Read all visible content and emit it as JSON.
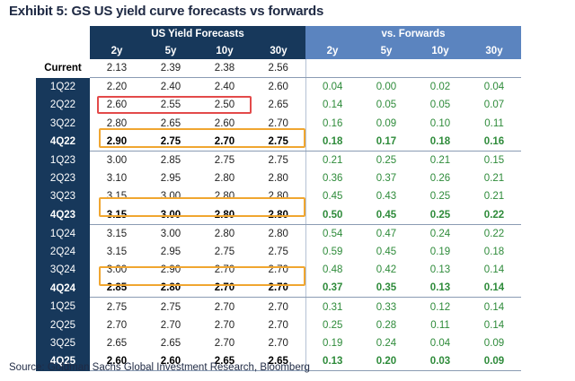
{
  "title": "Exhibit 5: GS US yield curve forecasts vs forwards",
  "group_headers": {
    "forecasts": "US Yield Forecasts",
    "forwards": "vs. Forwards"
  },
  "columns": [
    "2y",
    "5y",
    "10y",
    "30y"
  ],
  "rows": [
    {
      "label": "Current",
      "f": [
        "2.13",
        "2.39",
        "2.38",
        "2.56"
      ],
      "w": [
        "",
        "",
        "",
        ""
      ],
      "bold": false,
      "current": true
    },
    {
      "label": "1Q22",
      "f": [
        "2.20",
        "2.40",
        "2.40",
        "2.60"
      ],
      "w": [
        "0.04",
        "0.00",
        "0.02",
        "0.04"
      ],
      "bold": false
    },
    {
      "label": "2Q22",
      "f": [
        "2.60",
        "2.55",
        "2.50",
        "2.65"
      ],
      "w": [
        "0.14",
        "0.05",
        "0.05",
        "0.07"
      ],
      "bold": false
    },
    {
      "label": "3Q22",
      "f": [
        "2.80",
        "2.65",
        "2.60",
        "2.70"
      ],
      "w": [
        "0.16",
        "0.09",
        "0.10",
        "0.11"
      ],
      "bold": false
    },
    {
      "label": "4Q22",
      "f": [
        "2.90",
        "2.75",
        "2.70",
        "2.75"
      ],
      "w": [
        "0.18",
        "0.17",
        "0.18",
        "0.16"
      ],
      "bold": true
    },
    {
      "label": "1Q23",
      "f": [
        "3.00",
        "2.85",
        "2.75",
        "2.75"
      ],
      "w": [
        "0.21",
        "0.25",
        "0.21",
        "0.15"
      ],
      "bold": false
    },
    {
      "label": "2Q23",
      "f": [
        "3.10",
        "2.95",
        "2.80",
        "2.80"
      ],
      "w": [
        "0.36",
        "0.37",
        "0.26",
        "0.21"
      ],
      "bold": false
    },
    {
      "label": "3Q23",
      "f": [
        "3.15",
        "3.00",
        "2.80",
        "2.80"
      ],
      "w": [
        "0.45",
        "0.43",
        "0.25",
        "0.21"
      ],
      "bold": false
    },
    {
      "label": "4Q23",
      "f": [
        "3.15",
        "3.00",
        "2.80",
        "2.80"
      ],
      "w": [
        "0.50",
        "0.45",
        "0.25",
        "0.22"
      ],
      "bold": true
    },
    {
      "label": "1Q24",
      "f": [
        "3.15",
        "3.00",
        "2.80",
        "2.80"
      ],
      "w": [
        "0.54",
        "0.47",
        "0.24",
        "0.22"
      ],
      "bold": false
    },
    {
      "label": "2Q24",
      "f": [
        "3.15",
        "2.95",
        "2.75",
        "2.75"
      ],
      "w": [
        "0.59",
        "0.45",
        "0.19",
        "0.18"
      ],
      "bold": false
    },
    {
      "label": "3Q24",
      "f": [
        "3.00",
        "2.90",
        "2.70",
        "2.70"
      ],
      "w": [
        "0.48",
        "0.42",
        "0.13",
        "0.14"
      ],
      "bold": false
    },
    {
      "label": "4Q24",
      "f": [
        "2.85",
        "2.80",
        "2.70",
        "2.70"
      ],
      "w": [
        "0.37",
        "0.35",
        "0.13",
        "0.14"
      ],
      "bold": true
    },
    {
      "label": "1Q25",
      "f": [
        "2.75",
        "2.75",
        "2.70",
        "2.70"
      ],
      "w": [
        "0.31",
        "0.33",
        "0.12",
        "0.14"
      ],
      "bold": false
    },
    {
      "label": "2Q25",
      "f": [
        "2.70",
        "2.70",
        "2.70",
        "2.70"
      ],
      "w": [
        "0.25",
        "0.28",
        "0.11",
        "0.14"
      ],
      "bold": false
    },
    {
      "label": "3Q25",
      "f": [
        "2.65",
        "2.65",
        "2.70",
        "2.70"
      ],
      "w": [
        "0.19",
        "0.24",
        "0.04",
        "0.09"
      ],
      "bold": false
    },
    {
      "label": "4Q25",
      "f": [
        "2.60",
        "2.60",
        "2.65",
        "2.65"
      ],
      "w": [
        "0.13",
        "0.20",
        "0.03",
        "0.09"
      ],
      "bold": true
    }
  ],
  "source": "Source: Goldman Sachs Global Investment Research, Bloomberg",
  "colors": {
    "navy": "#17385b",
    "blue": "#5b84bf",
    "green": "#2e8b3a",
    "red_box": "#e34a4a",
    "orange_box": "#f0a630"
  }
}
